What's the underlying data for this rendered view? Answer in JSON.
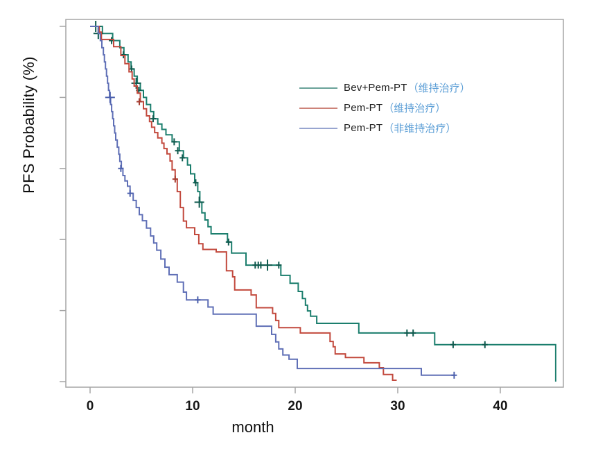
{
  "chart_data": {
    "type": "line",
    "subtype": "kaplan-meier-step",
    "title": "",
    "xlabel": "month",
    "ylabel": "PFS Probability (%)",
    "x_ticks": [
      0,
      10,
      20,
      30,
      40
    ],
    "y_ticks": [
      0,
      20,
      40,
      60,
      80,
      100
    ],
    "y_tick_labels_visible": false,
    "xlim": [
      0,
      46
    ],
    "ylim": [
      0,
      100
    ],
    "grid": false,
    "legend_position": "upper-right-inside",
    "axis_color": "#a6a6a6",
    "tick_label_color": "#161616",
    "series": [
      {
        "name": "Bev+Pem-PT（维持治疗）",
        "legend_latin": "Bev+Pem-PT",
        "legend_cjk": "（维持治疗）",
        "color": "#1b7e6d",
        "legend_color": "#6aa299",
        "censor_color": "#0f5a4e",
        "end_month": 45.4,
        "steps": [
          [
            0,
            100
          ],
          [
            1.2,
            98
          ],
          [
            2.2,
            96
          ],
          [
            2.9,
            94
          ],
          [
            3.3,
            92
          ],
          [
            3.7,
            90
          ],
          [
            4.0,
            88
          ],
          [
            4.3,
            86
          ],
          [
            4.6,
            84
          ],
          [
            4.9,
            82
          ],
          [
            5.2,
            80
          ],
          [
            5.5,
            78
          ],
          [
            5.9,
            76
          ],
          [
            6.2,
            74
          ],
          [
            6.6,
            72.5
          ],
          [
            7.0,
            71
          ],
          [
            7.4,
            69.5
          ],
          [
            8.0,
            67.5
          ],
          [
            8.7,
            65
          ],
          [
            9.1,
            63
          ],
          [
            9.5,
            61
          ],
          [
            9.8,
            58.5
          ],
          [
            10.2,
            56
          ],
          [
            10.5,
            53.5
          ],
          [
            10.7,
            50.5
          ],
          [
            10.9,
            47.5
          ],
          [
            11.2,
            45.5
          ],
          [
            11.5,
            43.6
          ],
          [
            11.8,
            41.6
          ],
          [
            13.4,
            39.3
          ],
          [
            13.8,
            36.2
          ],
          [
            15.2,
            32.8
          ],
          [
            18.6,
            29.9
          ],
          [
            19.5,
            27.7
          ],
          [
            20.3,
            25.4
          ],
          [
            20.7,
            23.4
          ],
          [
            21.0,
            21.5
          ],
          [
            21.2,
            19.9
          ],
          [
            21.5,
            18.4
          ],
          [
            22.1,
            16.4
          ],
          [
            26.2,
            13.7
          ],
          [
            33.6,
            10.4
          ],
          [
            45.4,
            0
          ]
        ],
        "censors": [
          [
            0.55,
            100,
            1
          ],
          [
            0.8,
            98,
            1
          ],
          [
            2.1,
            96,
            0
          ],
          [
            3.25,
            92,
            0
          ],
          [
            4.05,
            88,
            0
          ],
          [
            4.5,
            84,
            1
          ],
          [
            4.75,
            82,
            0
          ],
          [
            6.15,
            74,
            0
          ],
          [
            8.2,
            67.5,
            0
          ],
          [
            8.55,
            65,
            0
          ],
          [
            9.0,
            63,
            0
          ],
          [
            10.3,
            56,
            0
          ],
          [
            10.65,
            50.5,
            1
          ],
          [
            13.5,
            39.3,
            0
          ],
          [
            16.1,
            32.8,
            0
          ],
          [
            16.4,
            32.8,
            0
          ],
          [
            16.65,
            32.8,
            0
          ],
          [
            17.3,
            32.8,
            1
          ],
          [
            18.4,
            32.8,
            0
          ],
          [
            30.9,
            13.7,
            0
          ],
          [
            31.5,
            13.7,
            0
          ],
          [
            35.4,
            10.4,
            0
          ],
          [
            38.5,
            10.4,
            0
          ]
        ]
      },
      {
        "name": "Pem-PT（维持治疗）",
        "legend_latin": "Pem-PT",
        "legend_cjk": "（维持治疗）",
        "color": "#c2493d",
        "legend_color": "#cd8379",
        "censor_color": "#a63c30",
        "end_month": 29.9,
        "steps": [
          [
            0,
            100
          ],
          [
            0.9,
            98.4
          ],
          [
            1.1,
            96.3
          ],
          [
            2.3,
            94.3
          ],
          [
            3.0,
            91.8
          ],
          [
            3.4,
            89.5
          ],
          [
            3.8,
            87.2
          ],
          [
            4.1,
            85.2
          ],
          [
            4.3,
            83.2
          ],
          [
            4.6,
            81.2
          ],
          [
            4.9,
            78.8
          ],
          [
            5.2,
            76.8
          ],
          [
            5.5,
            74.8
          ],
          [
            5.8,
            73.2
          ],
          [
            6.0,
            71.6
          ],
          [
            6.3,
            70.1
          ],
          [
            6.6,
            68.6
          ],
          [
            7.0,
            67.1
          ],
          [
            7.2,
            65.6
          ],
          [
            7.5,
            64.1
          ],
          [
            7.8,
            62.1
          ],
          [
            8.0,
            59.6
          ],
          [
            8.3,
            57
          ],
          [
            8.5,
            53.5
          ],
          [
            8.8,
            49
          ],
          [
            9.1,
            45.2
          ],
          [
            9.4,
            43.3
          ],
          [
            10.2,
            41.4
          ],
          [
            10.6,
            38.8
          ],
          [
            11.0,
            37.2
          ],
          [
            12.3,
            36.5
          ],
          [
            13.3,
            31.2
          ],
          [
            13.9,
            29.5
          ],
          [
            14.1,
            25.8
          ],
          [
            15.7,
            24.4
          ],
          [
            16.2,
            20.8
          ],
          [
            17.8,
            19.2
          ],
          [
            18.1,
            17.2
          ],
          [
            18.4,
            15.2
          ],
          [
            20.5,
            13.7
          ],
          [
            23.4,
            11.3
          ],
          [
            23.7,
            9.8
          ],
          [
            23.9,
            7.8
          ],
          [
            24.9,
            6.8
          ],
          [
            26.7,
            5.3
          ],
          [
            28.2,
            3.9
          ],
          [
            28.6,
            2.0
          ],
          [
            29.5,
            0.4
          ]
        ],
        "censors": [
          [
            4.8,
            78.8,
            0
          ],
          [
            8.3,
            57,
            0
          ]
        ]
      },
      {
        "name": "Pem-PT（非维持治疗）",
        "legend_latin": "Pem-PT",
        "legend_cjk": "（非维持治疗）",
        "color": "#5f6fb6",
        "legend_color": "#98a5d0",
        "censor_color": "#4c60ad",
        "end_month": 35.5,
        "steps": [
          [
            0,
            100
          ],
          [
            0.8,
            98
          ],
          [
            1.0,
            96
          ],
          [
            1.15,
            94
          ],
          [
            1.3,
            92
          ],
          [
            1.4,
            90
          ],
          [
            1.5,
            88
          ],
          [
            1.6,
            86
          ],
          [
            1.7,
            84
          ],
          [
            1.8,
            82
          ],
          [
            1.9,
            80
          ],
          [
            2.0,
            78
          ],
          [
            2.1,
            76
          ],
          [
            2.2,
            74
          ],
          [
            2.3,
            72
          ],
          [
            2.4,
            70
          ],
          [
            2.5,
            68
          ],
          [
            2.65,
            66
          ],
          [
            2.8,
            64
          ],
          [
            2.9,
            62
          ],
          [
            3.05,
            60
          ],
          [
            3.2,
            58
          ],
          [
            3.4,
            56.5
          ],
          [
            3.65,
            55
          ],
          [
            3.9,
            53
          ],
          [
            4.2,
            51
          ],
          [
            4.5,
            49
          ],
          [
            4.8,
            47
          ],
          [
            5.1,
            45.3
          ],
          [
            5.5,
            43.2
          ],
          [
            5.9,
            41
          ],
          [
            6.2,
            39
          ],
          [
            6.5,
            37
          ],
          [
            6.9,
            34.5
          ],
          [
            7.3,
            32.2
          ],
          [
            7.7,
            30.1
          ],
          [
            8.5,
            28
          ],
          [
            9.1,
            25.2
          ],
          [
            9.4,
            23
          ],
          [
            11.5,
            21
          ],
          [
            12.0,
            19
          ],
          [
            16.2,
            15.6
          ],
          [
            17.7,
            13.3
          ],
          [
            18.1,
            11.2
          ],
          [
            18.4,
            9.2
          ],
          [
            18.8,
            7.5
          ],
          [
            19.4,
            6.3
          ],
          [
            20.2,
            3.7
          ],
          [
            32.3,
            1.8
          ]
        ],
        "censors": [
          [
            1.95,
            80,
            1
          ],
          [
            3.0,
            60,
            0
          ],
          [
            3.9,
            53,
            0
          ],
          [
            10.5,
            23,
            0
          ],
          [
            35.5,
            1.8,
            0
          ]
        ]
      }
    ]
  }
}
